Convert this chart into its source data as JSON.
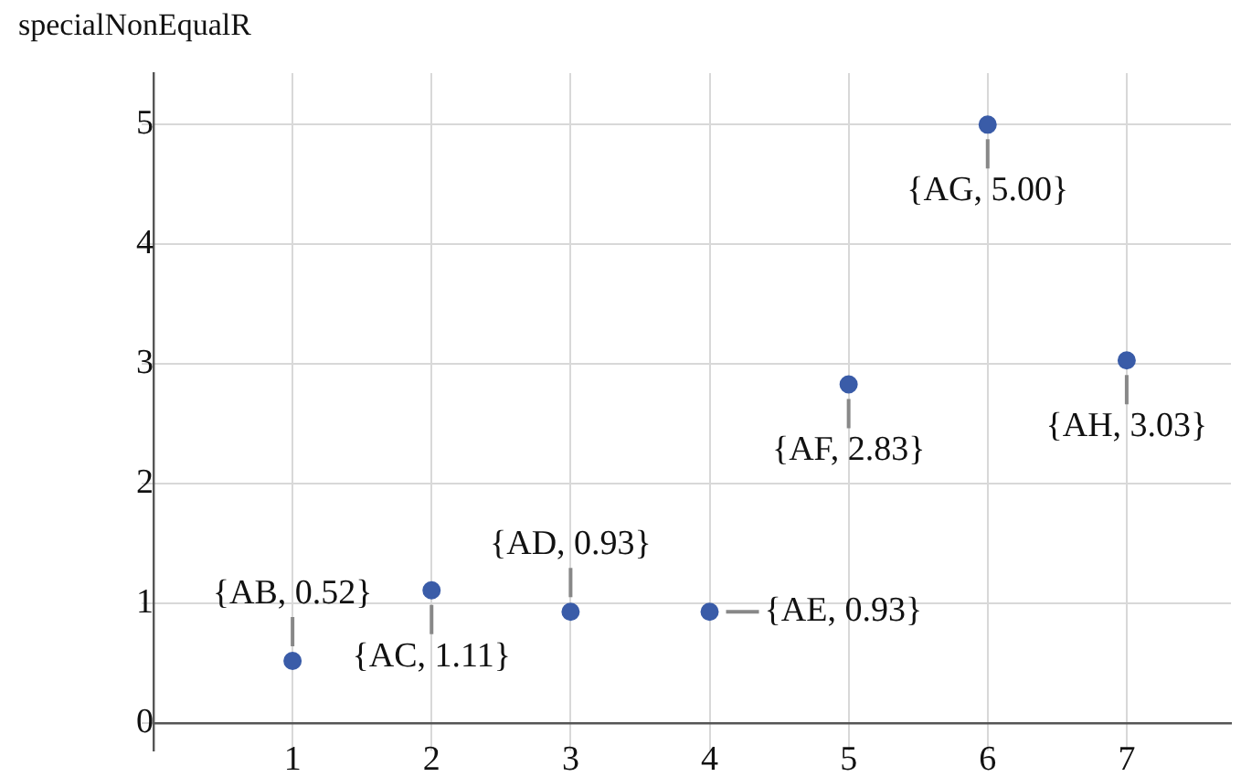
{
  "chart_data": {
    "type": "scatter",
    "ylabel": "specialNonEqualR",
    "x": [
      1,
      2,
      3,
      4,
      5,
      6,
      7
    ],
    "series": [
      {
        "color": "#3a5ca8",
        "values": [
          0.52,
          1.11,
          0.93,
          0.93,
          2.83,
          5.0,
          3.03
        ]
      }
    ],
    "xlim": [
      0,
      7.75
    ],
    "ylim": [
      -0.23,
      5.43
    ],
    "xticks": [
      1,
      2,
      3,
      4,
      5,
      6,
      7
    ],
    "yticks": [
      0,
      1,
      2,
      3,
      4,
      5
    ],
    "grid": true,
    "legend": false,
    "marker": "circle",
    "annotations": [
      {
        "text": "{AB, 0.52}",
        "x": 1,
        "y": 0.52
      },
      {
        "text": "{AC, 1.11}",
        "x": 2,
        "y": 1.11
      },
      {
        "text": "{AD, 0.93}",
        "x": 3,
        "y": 0.93
      },
      {
        "text": "{AE, 0.93}",
        "x": 4,
        "y": 0.93
      },
      {
        "text": "{AF, 2.83}",
        "x": 5,
        "y": 2.83
      },
      {
        "text": "{AG, 5.00}",
        "x": 6,
        "y": 5.0
      },
      {
        "text": "{AH, 3.03}",
        "x": 7,
        "y": 3.03
      }
    ]
  }
}
